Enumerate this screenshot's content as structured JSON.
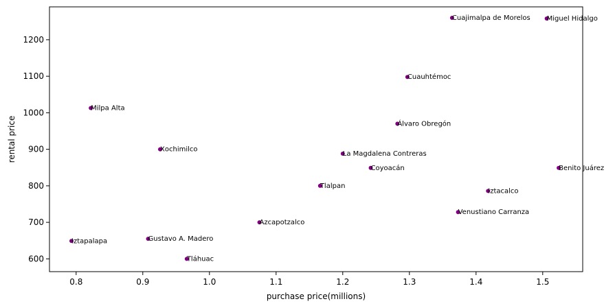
{
  "chart_data": {
    "type": "scatter",
    "xlabel": "purchase price(millions)",
    "ylabel": "rental price",
    "xlim": [
      0.76,
      1.56
    ],
    "ylim": [
      565,
      1290
    ],
    "xticks": [
      0.8,
      0.9,
      1.0,
      1.1,
      1.2,
      1.3,
      1.4,
      1.5
    ],
    "xtick_labels": [
      "0.8",
      "0.9",
      "1.0",
      "1.1",
      "1.2",
      "1.3",
      "1.4",
      "1.5"
    ],
    "yticks": [
      600,
      700,
      800,
      900,
      1000,
      1100,
      1200
    ],
    "ytick_labels": [
      "600",
      "700",
      "800",
      "900",
      "1000",
      "1100",
      "1200"
    ],
    "grid": false,
    "marker_color": "#800080",
    "points": [
      {
        "x": 1.364,
        "y": 1260,
        "label": "Cuajimalpa de Morelos"
      },
      {
        "x": 1.506,
        "y": 1258,
        "label": "Miguel Hidalgo"
      },
      {
        "x": 1.297,
        "y": 1098,
        "label": "Cuauhtémoc"
      },
      {
        "x": 0.822,
        "y": 1013,
        "label": "Milpa Alta"
      },
      {
        "x": 1.282,
        "y": 970,
        "label": "Álvaro Obregón"
      },
      {
        "x": 0.926,
        "y": 900,
        "label": "Xochimilco"
      },
      {
        "x": 1.2,
        "y": 888,
        "label": "La Magdalena Contreras"
      },
      {
        "x": 1.242,
        "y": 849,
        "label": "Coyoacán"
      },
      {
        "x": 1.524,
        "y": 849,
        "label": "Benito Juárez"
      },
      {
        "x": 1.166,
        "y": 800,
        "label": "Tlalpan"
      },
      {
        "x": 1.418,
        "y": 786,
        "label": "Iztacalco"
      },
      {
        "x": 1.373,
        "y": 728,
        "label": "Venustiano Carranza"
      },
      {
        "x": 1.075,
        "y": 700,
        "label": "Azcapotzalco"
      },
      {
        "x": 0.793,
        "y": 649,
        "label": "Iztapalapa"
      },
      {
        "x": 0.908,
        "y": 655,
        "label": "Gustavo A. Madero"
      },
      {
        "x": 0.966,
        "y": 600,
        "label": "Tláhuac"
      }
    ]
  }
}
